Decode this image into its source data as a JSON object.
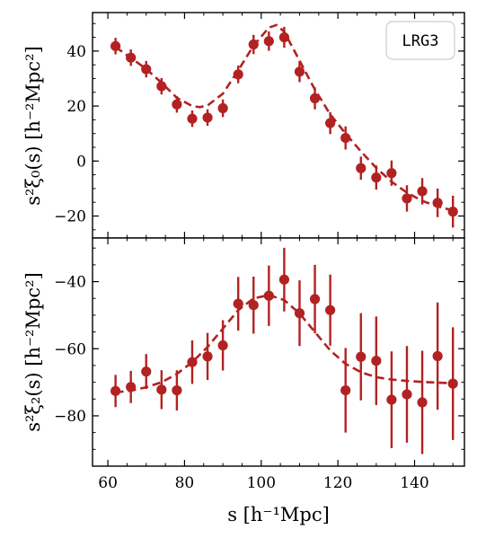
{
  "chart_data": [
    {
      "type": "scatter",
      "panel": "top",
      "ylabel": "s²ξ₀(s) [h⁻²Mpc²]",
      "xlabel": "",
      "xlim": [
        56,
        153
      ],
      "ylim": [
        -28,
        54
      ],
      "xticks": [
        "60",
        "80",
        "100",
        "120",
        "140"
      ],
      "yticks": [
        "−20",
        "0",
        "20",
        "40"
      ],
      "ytick_values": [
        -20,
        0,
        20,
        40
      ],
      "legend": {
        "label": "LRG3",
        "placement": "top-right"
      },
      "color": "#b22222",
      "series": [
        {
          "kind": "data",
          "x": [
            62,
            66,
            70,
            74,
            78,
            82,
            86,
            90,
            94,
            98,
            102,
            106,
            110,
            114,
            118,
            122,
            126,
            130,
            134,
            138,
            142,
            146,
            150
          ],
          "y": [
            41.8,
            37.6,
            33.4,
            27.2,
            20.6,
            15.4,
            15.8,
            19.2,
            31.5,
            42.4,
            43.6,
            45.0,
            32.5,
            22.8,
            13.8,
            8.4,
            -2.6,
            -6.0,
            -4.4,
            -13.6,
            -11.0,
            -15.2,
            -18.4
          ],
          "yerr": [
            3.0,
            3.0,
            3.0,
            3.0,
            3.0,
            3.0,
            3.0,
            3.2,
            3.2,
            3.5,
            3.5,
            3.8,
            3.8,
            4.0,
            4.0,
            4.2,
            4.2,
            4.4,
            4.6,
            4.8,
            4.8,
            5.2,
            5.8
          ]
        },
        {
          "kind": "model",
          "x": [
            62,
            66,
            70,
            74,
            78,
            82,
            84,
            86,
            90,
            94,
            98,
            102,
            104,
            106,
            110,
            114,
            118,
            122,
            126,
            130,
            134,
            138,
            142,
            146,
            150
          ],
          "y": [
            41.5,
            37.5,
            33.5,
            28.5,
            23.0,
            20.0,
            19.6,
            20.2,
            24.5,
            33.0,
            42.0,
            48.5,
            49.5,
            47.0,
            36.5,
            26.0,
            17.0,
            10.0,
            3.5,
            -2.5,
            -7.5,
            -11.5,
            -14.5,
            -16.5,
            -18.0
          ]
        }
      ]
    },
    {
      "type": "scatter",
      "panel": "bottom",
      "ylabel": "s²ξ₂(s) [h⁻²Mpc²]",
      "xlabel": "s [h⁻¹Mpc]",
      "xlim": [
        56,
        153
      ],
      "ylim": [
        -95,
        -27
      ],
      "xticks": [
        "60",
        "80",
        "100",
        "120",
        "140"
      ],
      "xtick_values": [
        60,
        80,
        100,
        120,
        140
      ],
      "yticks": [
        "−80",
        "−60",
        "−40"
      ],
      "ytick_values": [
        -80,
        -60,
        -40
      ],
      "color": "#b22222",
      "series": [
        {
          "kind": "data",
          "x": [
            62,
            66,
            70,
            74,
            78,
            82,
            86,
            90,
            94,
            98,
            102,
            106,
            110,
            114,
            118,
            122,
            126,
            130,
            134,
            138,
            142,
            146,
            150
          ],
          "y": [
            -72.6,
            -71.4,
            -66.8,
            -72.2,
            -72.4,
            -64.0,
            -62.3,
            -59.0,
            -46.6,
            -47.0,
            -44.2,
            -39.4,
            -49.4,
            -45.2,
            -48.5,
            -72.4,
            -62.4,
            -63.6,
            -75.2,
            -73.6,
            -76.0,
            -62.2,
            -70.4
          ],
          "yerr": [
            4.8,
            4.8,
            5.2,
            5.8,
            6.0,
            6.5,
            7.0,
            7.5,
            8.0,
            8.5,
            9.0,
            9.5,
            9.8,
            10.2,
            10.6,
            12.6,
            13.0,
            13.2,
            14.4,
            14.4,
            15.4,
            16.0,
            16.8
          ]
        },
        {
          "kind": "model",
          "x": [
            62,
            66,
            70,
            74,
            78,
            82,
            86,
            90,
            94,
            98,
            102,
            106,
            110,
            114,
            118,
            122,
            126,
            130,
            134,
            138,
            142,
            146,
            150
          ],
          "y": [
            -73.0,
            -72.5,
            -71.5,
            -70.0,
            -67.5,
            -64.0,
            -59.5,
            -54.0,
            -48.5,
            -45.0,
            -44.0,
            -45.5,
            -49.5,
            -55.0,
            -60.5,
            -64.5,
            -67.0,
            -68.5,
            -69.2,
            -69.6,
            -69.9,
            -70.1,
            -70.3
          ]
        }
      ]
    }
  ]
}
